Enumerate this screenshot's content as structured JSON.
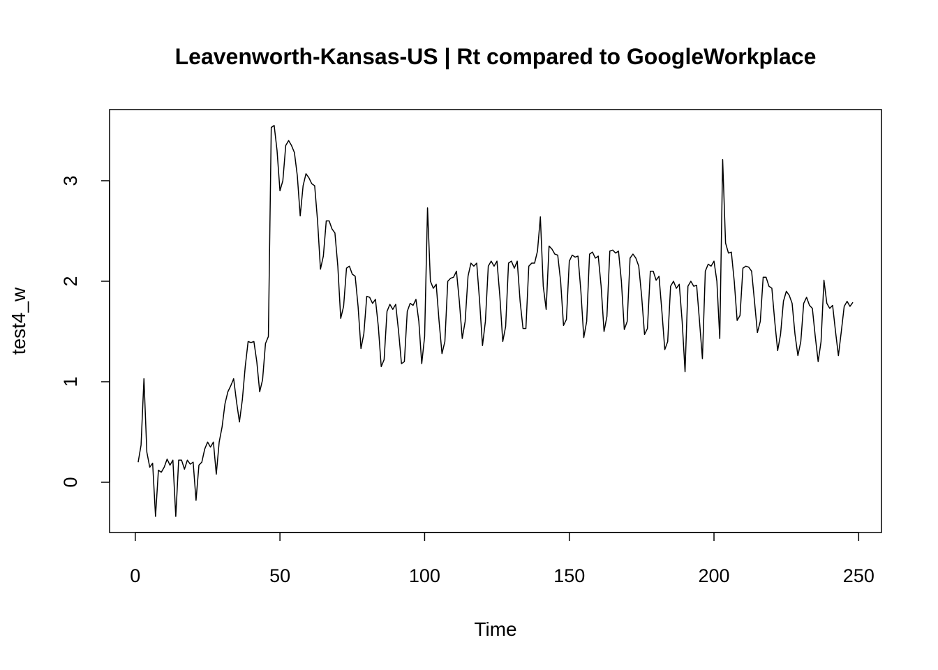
{
  "chart_data": {
    "type": "line",
    "title": "Leavenworth-Kansas-US | Rt compared to GoogleWorkplace",
    "x_label": "Time",
    "y_label": "test4_w",
    "color": "#000000",
    "xlim": [
      -8.88,
      257.88
    ],
    "ylim": [
      -0.5,
      3.708
    ],
    "xticks": [
      0,
      50,
      100,
      150,
      200,
      250
    ],
    "yticks": [
      0,
      1,
      2,
      3
    ],
    "x": [
      1,
      2,
      3,
      4,
      5,
      6,
      7,
      8,
      9,
      10,
      11,
      12,
      13,
      14,
      15,
      16,
      17,
      18,
      19,
      20,
      21,
      22,
      23,
      24,
      25,
      26,
      27,
      28,
      29,
      30,
      31,
      32,
      33,
      34,
      35,
      36,
      37,
      38,
      39,
      40,
      41,
      42,
      43,
      44,
      45,
      46,
      47,
      48,
      49,
      50,
      51,
      52,
      53,
      54,
      55,
      56,
      57,
      58,
      59,
      60,
      61,
      62,
      63,
      64,
      65,
      66,
      67,
      68,
      69,
      70,
      71,
      72,
      73,
      74,
      75,
      76,
      77,
      78,
      79,
      80,
      81,
      82,
      83,
      84,
      85,
      86,
      87,
      88,
      89,
      90,
      91,
      92,
      93,
      94,
      95,
      96,
      97,
      98,
      99,
      100,
      101,
      102,
      103,
      104,
      105,
      106,
      107,
      108,
      109,
      110,
      111,
      112,
      113,
      114,
      115,
      116,
      117,
      118,
      119,
      120,
      121,
      122,
      123,
      124,
      125,
      126,
      127,
      128,
      129,
      130,
      131,
      132,
      133,
      134,
      135,
      136,
      137,
      138,
      139,
      140,
      141,
      142,
      143,
      144,
      145,
      146,
      147,
      148,
      149,
      150,
      151,
      152,
      153,
      154,
      155,
      156,
      157,
      158,
      159,
      160,
      161,
      162,
      163,
      164,
      165,
      166,
      167,
      168,
      169,
      170,
      171,
      172,
      173,
      174,
      175,
      176,
      177,
      178,
      179,
      180,
      181,
      182,
      183,
      184,
      185,
      186,
      187,
      188,
      189,
      190,
      191,
      192,
      193,
      194,
      195,
      196,
      197,
      198,
      199,
      200,
      201,
      202,
      203,
      204,
      205,
      206,
      207,
      208,
      209,
      210,
      211,
      212,
      213,
      214,
      215,
      216,
      217,
      218,
      219,
      220,
      221,
      222,
      223,
      224,
      225,
      226,
      227,
      228,
      229,
      230,
      231,
      232,
      233,
      234,
      235,
      236,
      237,
      238,
      239,
      240,
      241,
      242,
      243,
      244,
      245,
      246,
      247,
      248
    ],
    "values": [
      0.2,
      0.37,
      1.03,
      0.3,
      0.15,
      0.19,
      -0.34,
      0.12,
      0.1,
      0.15,
      0.23,
      0.17,
      0.22,
      -0.34,
      0.22,
      0.22,
      0.13,
      0.22,
      0.18,
      0.2,
      -0.18,
      0.17,
      0.2,
      0.33,
      0.4,
      0.35,
      0.4,
      0.08,
      0.4,
      0.55,
      0.78,
      0.9,
      0.96,
      1.03,
      0.8,
      0.6,
      0.82,
      1.15,
      1.4,
      1.39,
      1.4,
      1.2,
      0.9,
      1.02,
      1.38,
      1.45,
      3.53,
      3.55,
      3.3,
      2.9,
      3.0,
      3.35,
      3.4,
      3.35,
      3.28,
      3.05,
      2.65,
      2.95,
      3.07,
      3.03,
      2.97,
      2.95,
      2.6,
      2.12,
      2.25,
      2.6,
      2.6,
      2.52,
      2.48,
      2.15,
      1.63,
      1.75,
      2.13,
      2.15,
      2.07,
      2.05,
      1.75,
      1.33,
      1.48,
      1.85,
      1.84,
      1.78,
      1.82,
      1.55,
      1.15,
      1.22,
      1.7,
      1.77,
      1.72,
      1.77,
      1.5,
      1.18,
      1.2,
      1.7,
      1.78,
      1.76,
      1.82,
      1.6,
      1.18,
      1.45,
      2.73,
      2.0,
      1.93,
      1.97,
      1.6,
      1.28,
      1.4,
      2.0,
      2.03,
      2.04,
      2.1,
      1.8,
      1.43,
      1.6,
      2.05,
      2.18,
      2.15,
      2.18,
      1.8,
      1.36,
      1.6,
      2.15,
      2.2,
      2.15,
      2.2,
      1.85,
      1.4,
      1.55,
      2.18,
      2.2,
      2.13,
      2.2,
      1.8,
      1.53,
      1.53,
      2.15,
      2.18,
      2.18,
      2.3,
      2.64,
      1.95,
      1.72,
      2.35,
      2.32,
      2.27,
      2.26,
      2.0,
      1.56,
      1.62,
      2.2,
      2.26,
      2.24,
      2.25,
      1.9,
      1.44,
      1.6,
      2.27,
      2.29,
      2.23,
      2.25,
      1.95,
      1.5,
      1.65,
      2.3,
      2.31,
      2.28,
      2.3,
      2.0,
      1.52,
      1.6,
      2.23,
      2.27,
      2.23,
      2.15,
      1.85,
      1.47,
      1.53,
      2.1,
      2.1,
      2.01,
      2.05,
      1.7,
      1.32,
      1.4,
      1.95,
      2.0,
      1.93,
      1.97,
      1.6,
      1.1,
      1.95,
      2.0,
      1.95,
      1.96,
      1.6,
      1.23,
      2.1,
      2.17,
      2.15,
      2.2,
      2.0,
      1.43,
      3.21,
      2.38,
      2.28,
      2.29,
      2.0,
      1.61,
      1.66,
      2.13,
      2.15,
      2.14,
      2.1,
      1.8,
      1.49,
      1.6,
      2.04,
      2.04,
      1.95,
      1.93,
      1.6,
      1.31,
      1.47,
      1.8,
      1.9,
      1.86,
      1.78,
      1.47,
      1.26,
      1.4,
      1.78,
      1.84,
      1.76,
      1.73,
      1.45,
      1.2,
      1.4,
      2.01,
      1.78,
      1.73,
      1.76,
      1.5,
      1.26,
      1.5,
      1.75,
      1.8,
      1.75,
      1.79
    ]
  }
}
